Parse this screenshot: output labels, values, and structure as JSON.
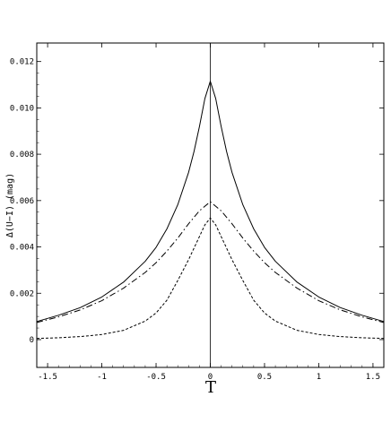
{
  "chart_data": {
    "type": "line",
    "xlabel": "T",
    "ylabel": "Δ(U−I) (mag)",
    "xlim": [
      -1.6,
      1.6
    ],
    "ylim": [
      -0.0012,
      0.0128
    ],
    "xticks": [
      -1.5,
      -1,
      -0.5,
      0,
      0.5,
      1,
      1.5
    ],
    "xtick_labels": [
      "-1.5",
      "-1",
      "-0.5",
      "0",
      "0.5",
      "1",
      "1.5"
    ],
    "yticks": [
      0,
      0.002,
      0.004,
      0.006,
      0.008,
      0.01,
      0.012
    ],
    "ytick_labels": [
      "0",
      "0.002",
      "0.004",
      "0.006",
      "0.008",
      "0.010",
      "0.012"
    ],
    "grid": false,
    "vertical_line_x": 0,
    "colors": {
      "line": "#000000",
      "frame": "#000000",
      "background": "#ffffff"
    },
    "series": [
      {
        "style": "solid",
        "x": [
          -1.6,
          -1.4,
          -1.2,
          -1.0,
          -0.8,
          -0.6,
          -0.5,
          -0.4,
          -0.3,
          -0.2,
          -0.15,
          -0.1,
          -0.05,
          0,
          0.05,
          0.1,
          0.15,
          0.2,
          0.3,
          0.4,
          0.5,
          0.6,
          0.8,
          1.0,
          1.2,
          1.4,
          1.6
        ],
        "y": [
          0.00078,
          0.00105,
          0.00138,
          0.00184,
          0.00248,
          0.00338,
          0.00398,
          0.00478,
          0.00582,
          0.00722,
          0.00812,
          0.0092,
          0.0104,
          0.01115,
          0.0104,
          0.0092,
          0.00812,
          0.00722,
          0.00582,
          0.00478,
          0.00398,
          0.00338,
          0.00248,
          0.00184,
          0.00138,
          0.00105,
          0.00078
        ]
      },
      {
        "style": "dashdot",
        "x": [
          -1.6,
          -1.4,
          -1.2,
          -1.0,
          -0.8,
          -0.6,
          -0.5,
          -0.4,
          -0.3,
          -0.2,
          -0.1,
          0,
          0.1,
          0.2,
          0.3,
          0.4,
          0.5,
          0.6,
          0.8,
          1.0,
          1.2,
          1.4,
          1.6
        ],
        "y": [
          0.00074,
          0.00098,
          0.00128,
          0.00168,
          0.00222,
          0.0029,
          0.00332,
          0.00382,
          0.00438,
          0.005,
          0.00556,
          0.00595,
          0.00556,
          0.005,
          0.00438,
          0.00382,
          0.00332,
          0.0029,
          0.00222,
          0.00168,
          0.00128,
          0.00098,
          0.00074
        ]
      },
      {
        "style": "dashed",
        "x": [
          -1.6,
          -1.4,
          -1.2,
          -1.0,
          -0.8,
          -0.6,
          -0.5,
          -0.4,
          -0.3,
          -0.2,
          -0.15,
          -0.1,
          -0.05,
          0,
          0.05,
          0.1,
          0.15,
          0.2,
          0.3,
          0.4,
          0.5,
          0.6,
          0.8,
          1.0,
          1.2,
          1.4,
          1.6
        ],
        "y": [
          5e-05,
          8e-05,
          0.00013,
          0.00022,
          0.0004,
          0.0008,
          0.00115,
          0.0017,
          0.00255,
          0.00345,
          0.00395,
          0.00445,
          0.00495,
          0.00525,
          0.00495,
          0.00445,
          0.00395,
          0.00345,
          0.00255,
          0.0017,
          0.00115,
          0.0008,
          0.0004,
          0.00022,
          0.00013,
          8e-05,
          5e-05
        ]
      }
    ]
  }
}
